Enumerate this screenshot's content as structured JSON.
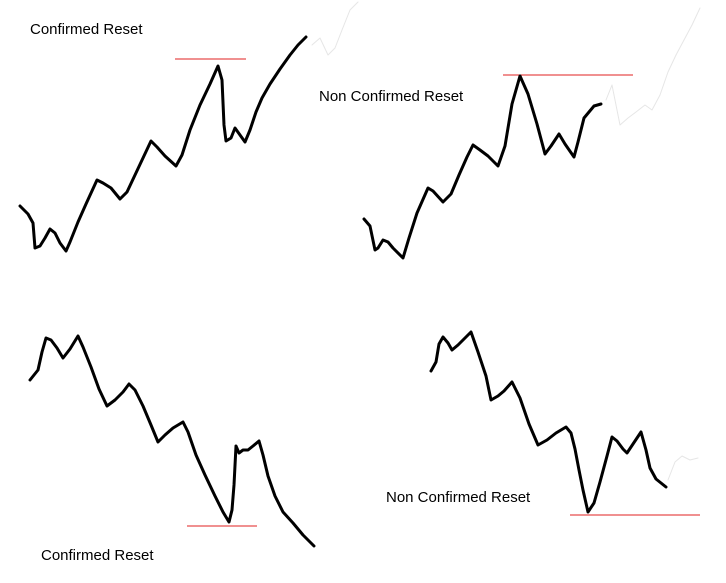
{
  "panels": {
    "top_left": {
      "label": "Confirmed Reset"
    },
    "top_right": {
      "label": "Non Confirmed Reset"
    },
    "bottom_left": {
      "label": "Confirmed Reset"
    },
    "bottom_right": {
      "label": "Non Confirmed Reset"
    }
  },
  "colors": {
    "price_line": "#000000",
    "reference_level": "#e02020",
    "ghost_trace": "#e6e6e6",
    "background": "#ffffff"
  }
}
